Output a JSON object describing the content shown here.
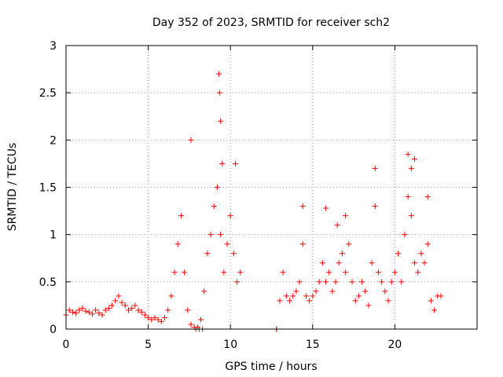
{
  "chart_data": {
    "type": "scatter",
    "title": "Day 352 of 2023, SRMTID for receiver sch2",
    "xlabel": "GPS time / hours",
    "ylabel": "SRMTID / TECUs",
    "xlim": [
      0,
      25
    ],
    "ylim": [
      0,
      3
    ],
    "x_ticks": [
      0,
      5,
      10,
      15,
      20
    ],
    "x_tick_labels": [
      "0",
      "5",
      "10",
      "15",
      "20"
    ],
    "y_ticks": [
      0,
      0.5,
      1,
      1.5,
      2,
      2.5,
      3
    ],
    "y_tick_labels": [
      "0",
      "0.5",
      "1",
      "1.5",
      "2",
      "2.5",
      "3"
    ],
    "grid": true,
    "marker": "plus",
    "series": [
      {
        "name": "sch2",
        "color": "#ff0000",
        "x": [
          0.0,
          0.2,
          0.4,
          0.6,
          0.8,
          1.0,
          1.2,
          1.4,
          1.6,
          1.8,
          2.0,
          2.2,
          2.4,
          2.6,
          2.8,
          3.0,
          3.2,
          3.4,
          3.6,
          3.8,
          4.0,
          4.2,
          4.4,
          4.6,
          4.8,
          5.0,
          5.2,
          5.4,
          5.6,
          5.8,
          6.0,
          6.2,
          6.4,
          6.6,
          6.8,
          7.0,
          7.2,
          7.4,
          7.6,
          7.8,
          8.0,
          8.2,
          8.4,
          8.6,
          8.8,
          9.0,
          9.2,
          9.4,
          9.6,
          9.8,
          10.0,
          10.2,
          10.4,
          10.6,
          12.8,
          13.0,
          13.2,
          13.4,
          13.6,
          13.8,
          14.0,
          14.2,
          14.4,
          14.6,
          14.8,
          15.0,
          15.2,
          15.4,
          15.6,
          15.8,
          16.0,
          16.2,
          16.4,
          16.6,
          16.8,
          17.0,
          17.2,
          17.4,
          17.6,
          17.8,
          18.0,
          18.2,
          18.4,
          18.6,
          18.8,
          19.0,
          19.2,
          19.4,
          19.6,
          19.8,
          20.0,
          20.2,
          20.4,
          20.6,
          20.8,
          21.0,
          21.2,
          21.4,
          21.6,
          21.8,
          22.0,
          22.2,
          22.4,
          22.6,
          22.8,
          9.3,
          9.35,
          7.6,
          9.4,
          9.5,
          10.3,
          14.4,
          15.8,
          16.5,
          17.0,
          18.8,
          20.8,
          21.0,
          21.2,
          22.0,
          7.9,
          8.1,
          8.3,
          12.8
        ],
        "y": [
          0.15,
          0.2,
          0.18,
          0.17,
          0.2,
          0.22,
          0.19,
          0.18,
          0.16,
          0.2,
          0.17,
          0.15,
          0.2,
          0.22,
          0.25,
          0.3,
          0.35,
          0.28,
          0.25,
          0.2,
          0.22,
          0.25,
          0.2,
          0.18,
          0.15,
          0.12,
          0.1,
          0.12,
          0.1,
          0.08,
          0.12,
          0.2,
          0.35,
          0.6,
          0.9,
          1.2,
          0.6,
          0.2,
          0.05,
          0.02,
          0.02,
          0.1,
          0.4,
          0.8,
          1.0,
          1.3,
          1.5,
          1.0,
          0.6,
          0.9,
          1.2,
          0.8,
          0.5,
          0.6,
          0.0,
          0.3,
          0.6,
          0.35,
          0.3,
          0.35,
          0.4,
          0.5,
          0.9,
          0.35,
          0.3,
          0.35,
          0.4,
          0.5,
          0.7,
          0.5,
          0.6,
          0.4,
          0.5,
          0.7,
          0.8,
          0.6,
          0.9,
          0.5,
          0.3,
          0.35,
          0.5,
          0.4,
          0.25,
          0.7,
          1.3,
          0.6,
          0.5,
          0.4,
          0.3,
          0.5,
          0.6,
          0.8,
          0.5,
          1.0,
          1.4,
          1.2,
          0.7,
          0.6,
          0.8,
          0.7,
          0.9,
          0.3,
          0.2,
          0.35,
          0.35,
          2.7,
          2.5,
          2.0,
          2.2,
          1.75,
          1.75,
          1.3,
          1.28,
          1.1,
          1.2,
          1.7,
          1.85,
          1.7,
          1.8,
          1.4,
          0.0,
          0.0,
          0.0,
          0.0
        ]
      }
    ]
  }
}
